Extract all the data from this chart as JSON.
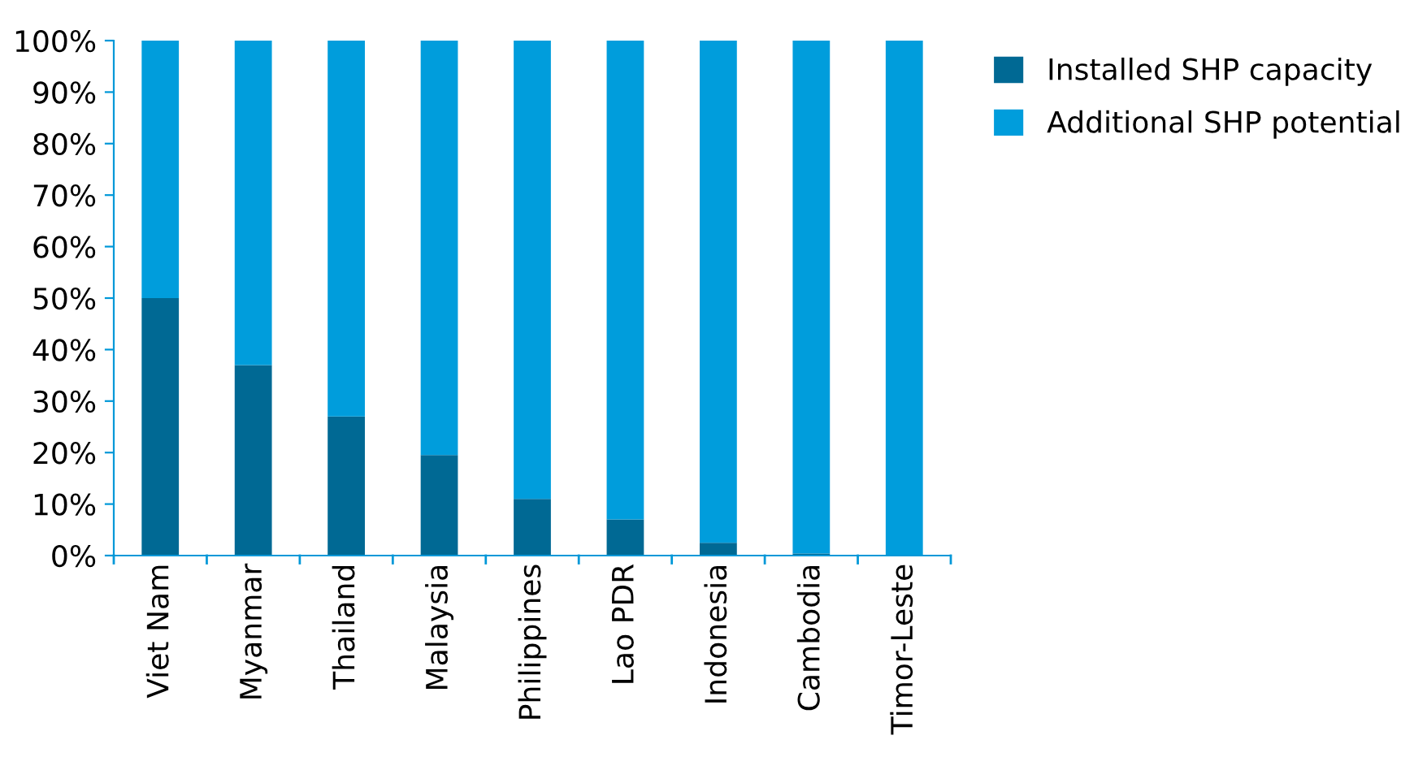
{
  "chart_data": {
    "type": "bar",
    "stacked": true,
    "categories": [
      "Viet Nam",
      "Myanmar",
      "Thailand",
      "Malaysia",
      "Philippines",
      "Lao PDR",
      "Indonesia",
      "Cambodia",
      "Timor-Leste"
    ],
    "series": [
      {
        "name": "Installed SHP capacity",
        "color": "#006994",
        "values": [
          50,
          37,
          27,
          19.5,
          11,
          7,
          2.5,
          0.4,
          0
        ]
      },
      {
        "name": "Additional SHP potential",
        "color": "#009ddc",
        "values": [
          50,
          63,
          73,
          80.5,
          89,
          93,
          97.5,
          99.6,
          100
        ]
      }
    ],
    "ylim": [
      0,
      100
    ],
    "yticks": [
      {
        "value": 0,
        "label": "0%"
      },
      {
        "value": 10,
        "label": "10%"
      },
      {
        "value": 20,
        "label": "20%"
      },
      {
        "value": 30,
        "label": "30%"
      },
      {
        "value": 40,
        "label": "40%"
      },
      {
        "value": 50,
        "label": "50%"
      },
      {
        "value": 60,
        "label": "60%"
      },
      {
        "value": 70,
        "label": "70%"
      },
      {
        "value": 80,
        "label": "80%"
      },
      {
        "value": 90,
        "label": "90%"
      },
      {
        "value": 100,
        "label": "100%"
      }
    ],
    "grid": false,
    "legend": "top right"
  }
}
